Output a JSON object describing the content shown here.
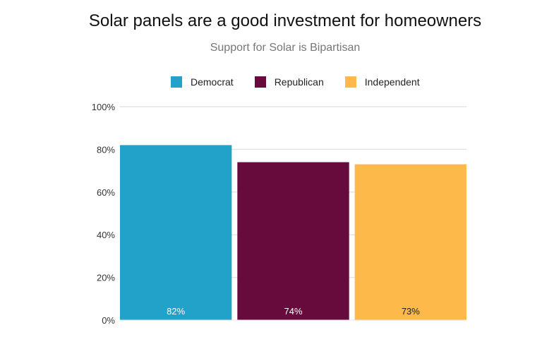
{
  "chart_data": {
    "type": "bar",
    "title": "Solar panels are a good investment for homeowners",
    "subtitle": "Support for Solar is Bipartisan",
    "categories": [
      "Democrat",
      "Republican",
      "Independent"
    ],
    "values": [
      82,
      74,
      73
    ],
    "data_labels": [
      "82%",
      "74%",
      "73%"
    ],
    "colors": [
      "#22a1c9",
      "#660b3b",
      "#fdb94a"
    ],
    "label_colors": [
      "#ffffff",
      "#ffffff",
      "#222222"
    ],
    "legend": [
      "Democrat",
      "Republican",
      "Independent"
    ],
    "legend_position": "top",
    "ylim": [
      0,
      100
    ],
    "yticks": [
      "0%",
      "20%",
      "40%",
      "60%",
      "80%",
      "100%"
    ],
    "grid": true
  }
}
